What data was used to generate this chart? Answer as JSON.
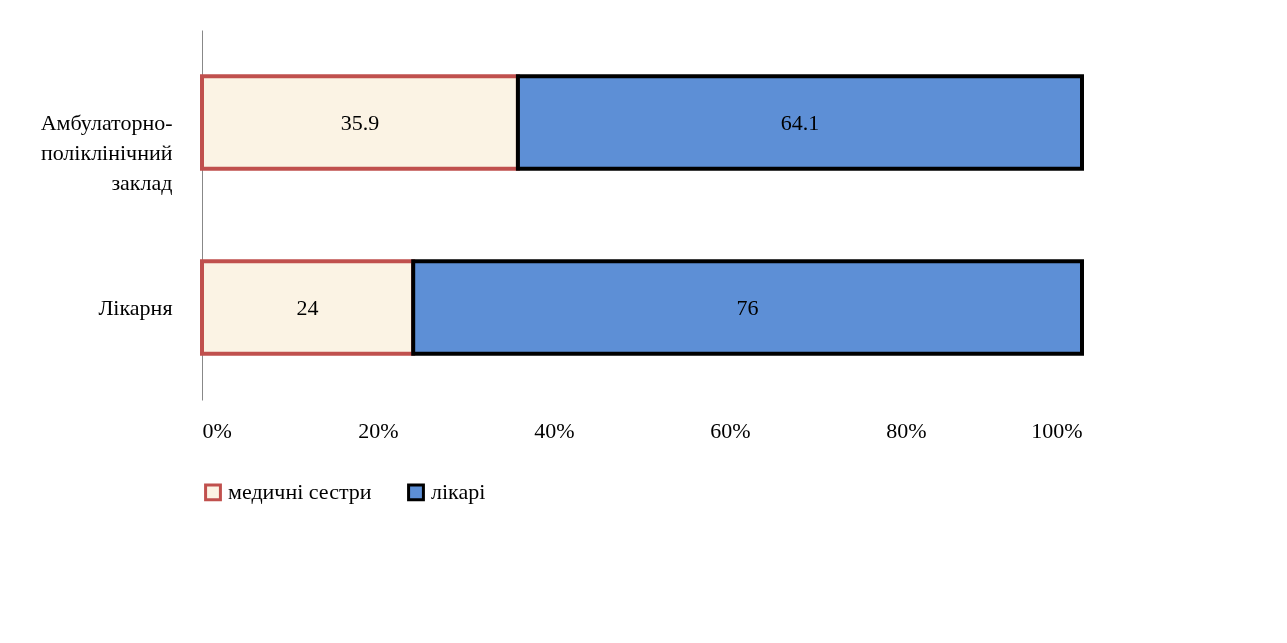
{
  "chart_data": {
    "type": "bar",
    "orientation": "horizontal",
    "stacked": true,
    "categories": [
      "Амбулаторно-поліклінічний заклад",
      "Лікарня"
    ],
    "series": [
      {
        "name": "медичні сестри",
        "color": "#fbf3e4",
        "values": [
          35.9,
          24
        ]
      },
      {
        "name": "лікарі",
        "color": "#5d8fd6",
        "values": [
          64.1,
          76
        ]
      }
    ],
    "xlim": [
      0,
      100
    ],
    "xticks": [
      {
        "value": 0,
        "label": "0%"
      },
      {
        "value": 20,
        "label": "20%"
      },
      {
        "value": 40,
        "label": "40%"
      },
      {
        "value": 60,
        "label": "60%"
      },
      {
        "value": 80,
        "label": "80%"
      },
      {
        "value": 100,
        "label": "100%"
      }
    ],
    "grid": false,
    "legend": "bottom",
    "data_labels": true
  }
}
